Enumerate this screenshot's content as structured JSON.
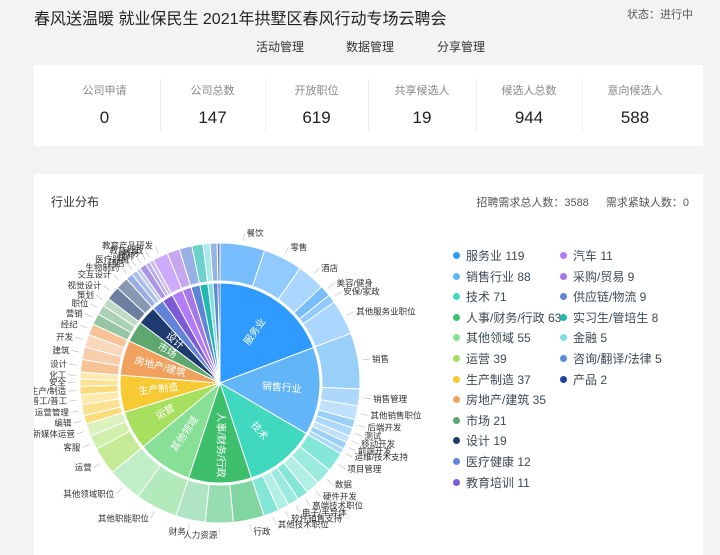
{
  "header": {
    "title": "春风送温暖 就业保民生 2021年拱墅区春风行动专场云聘会",
    "status": "状态：进行中"
  },
  "nav": [
    {
      "label": "活动管理"
    },
    {
      "label": "数据管理"
    },
    {
      "label": "分享管理"
    }
  ],
  "stats": [
    {
      "label": "公司申请",
      "value": "0"
    },
    {
      "label": "公司总数",
      "value": "147"
    },
    {
      "label": "开放职位",
      "value": "619"
    },
    {
      "label": "共享候选人",
      "value": "19"
    },
    {
      "label": "候选人总数",
      "value": "944"
    },
    {
      "label": "意向候选人",
      "value": "588"
    }
  ],
  "chart_panel": {
    "title": "行业分布",
    "total_demand": "招聘需求总人数：3588",
    "shortage": "需求紧缺人数：0"
  },
  "chart_data": {
    "type": "sunburst",
    "categories": [
      {
        "name": "服务业",
        "value": 119,
        "color": "#2f9bff",
        "children": [
          {
            "name": "餐饮",
            "value": 32
          },
          {
            "name": "零售",
            "value": 28
          },
          {
            "name": "酒店",
            "value": 20
          },
          {
            "name": "美容/健身",
            "value": 8
          },
          {
            "name": "安保/家政",
            "value": 6
          },
          {
            "name": "其他服务业职位",
            "value": 25
          }
        ]
      },
      {
        "name": "销售行业",
        "value": 88,
        "color": "#62b6f7",
        "children": [
          {
            "name": "销售",
            "value": 40
          },
          {
            "name": "销售管理",
            "value": 12
          },
          {
            "name": "其他销售职位",
            "value": 10
          },
          {
            "name": "后端开发",
            "value": 6
          },
          {
            "name": "测试",
            "value": 6
          },
          {
            "name": "移动开发",
            "value": 5
          },
          {
            "name": "前端开发",
            "value": 5
          },
          {
            "name": "运维/技术支持",
            "value": 4
          }
        ]
      },
      {
        "name": "技术",
        "value": 71,
        "color": "#41d8c0",
        "children": [
          {
            "name": "项目管理",
            "value": 14
          },
          {
            "name": "数据",
            "value": 12
          },
          {
            "name": "硬件开发",
            "value": 10
          },
          {
            "name": "高端技术职位",
            "value": 8
          },
          {
            "name": "电子/半导体",
            "value": 8
          },
          {
            "name": "软件销售支持",
            "value": 8
          },
          {
            "name": "其他技术职位",
            "value": 11
          }
        ]
      },
      {
        "name": "人事/财务/行政",
        "value": 63,
        "color": "#3dbf6c",
        "children": [
          {
            "name": "行政",
            "value": 22
          },
          {
            "name": "人力资源",
            "value": 20
          },
          {
            "name": "财务",
            "value": 21
          }
        ]
      },
      {
        "name": "其他领域",
        "value": 55,
        "color": "#88df96",
        "children": [
          {
            "name": "其他职能职位",
            "value": 30
          },
          {
            "name": "其他领域职位",
            "value": 25
          }
        ]
      },
      {
        "name": "运营",
        "value": 39,
        "color": "#a7e05e",
        "children": [
          {
            "name": "运营",
            "value": 20
          },
          {
            "name": "客服",
            "value": 10
          },
          {
            "name": "新媒体运营",
            "value": 9
          }
        ]
      },
      {
        "name": "生产制造",
        "value": 37,
        "color": "#f7c932",
        "children": [
          {
            "name": "编辑",
            "value": 6
          },
          {
            "name": "运营管理",
            "value": 8
          },
          {
            "name": "普工/普工",
            "value": 7
          },
          {
            "name": "生产/制造",
            "value": 6
          },
          {
            "name": "安全",
            "value": 5
          },
          {
            "name": "化工",
            "value": 5
          }
        ]
      },
      {
        "name": "房地产/建筑",
        "value": 35,
        "color": "#f1a15e",
        "children": [
          {
            "name": "设计",
            "value": 9
          },
          {
            "name": "建筑",
            "value": 9
          },
          {
            "name": "开发",
            "value": 9
          },
          {
            "name": "经纪",
            "value": 8
          }
        ]
      },
      {
        "name": "市场",
        "value": 21,
        "color": "#5ea86f",
        "children": [
          {
            "name": "营销",
            "value": 8
          },
          {
            "name": "职位",
            "value": 7
          },
          {
            "name": "策划",
            "value": 6
          }
        ]
      },
      {
        "name": "设计",
        "value": 19,
        "color": "#1e3a6e",
        "children": [
          {
            "name": "视觉设计",
            "value": 10
          },
          {
            "name": "交互设计",
            "value": 9
          }
        ]
      },
      {
        "name": "医疗健康",
        "value": 12,
        "color": "#6283d8",
        "children": [
          {
            "name": "生物制药",
            "value": 5
          },
          {
            "name": "药店",
            "value": 4
          },
          {
            "name": "医疗器械",
            "value": 3
          }
        ]
      },
      {
        "name": "教育培训",
        "value": 11,
        "color": "#7c5bd6",
        "children": [
          {
            "name": "教师",
            "value": 5
          },
          {
            "name": "教务",
            "value": 3
          },
          {
            "name": "教育行政",
            "value": 3
          }
        ]
      },
      {
        "name": "汽车",
        "value": 11,
        "color": "#b27cf7",
        "children": [
          {
            "name": "教育产品研发",
            "value": 11
          }
        ]
      },
      {
        "name": "采购/贸易",
        "value": 9,
        "color": "#a578e8",
        "children": [
          {
            "name": "",
            "value": 9
          }
        ]
      },
      {
        "name": "供应链/物流",
        "value": 9,
        "color": "#5f86d6",
        "children": [
          {
            "name": "",
            "value": 9
          }
        ]
      },
      {
        "name": "实习生/管培生",
        "value": 8,
        "color": "#1fb9b1",
        "children": [
          {
            "name": "",
            "value": 8
          }
        ]
      },
      {
        "name": "金融",
        "value": 5,
        "color": "#7ddfe1",
        "children": [
          {
            "name": "",
            "value": 5
          }
        ]
      },
      {
        "name": "咨询/翻译/法律",
        "value": 5,
        "color": "#5b8bd8",
        "children": [
          {
            "name": "",
            "value": 5
          }
        ]
      },
      {
        "name": "产品",
        "value": 2,
        "color": "#233f9d",
        "children": [
          {
            "name": "",
            "value": 2
          }
        ]
      }
    ]
  },
  "legend": [
    {
      "text": "服务业 119",
      "color": "#2f9bff"
    },
    {
      "text": "汽车 11",
      "color": "#b27cf7"
    },
    {
      "text": "销售行业 88",
      "color": "#62b6f7"
    },
    {
      "text": "采购/贸易 9",
      "color": "#a578e8"
    },
    {
      "text": "技术 71",
      "color": "#41d8c0"
    },
    {
      "text": "供应链/物流 9",
      "color": "#5f86d6"
    },
    {
      "text": "人事/财务/行政 63",
      "color": "#3dbf6c"
    },
    {
      "text": "实习生/管培生 8",
      "color": "#1fb9b1"
    },
    {
      "text": "其他领域 55",
      "color": "#88df96"
    },
    {
      "text": "金融 5",
      "color": "#7ddfe1"
    },
    {
      "text": "运营 39",
      "color": "#a7e05e"
    },
    {
      "text": "咨询/翻译/法律 5",
      "color": "#5b8bd8"
    },
    {
      "text": "生产制造 37",
      "color": "#f7c932"
    },
    {
      "text": "产品 2",
      "color": "#233f9d"
    },
    {
      "text": "房地产/建筑 35",
      "color": "#f1a15e"
    },
    {
      "text": "市场 21",
      "color": "#5ea86f"
    },
    {
      "text": "设计 19",
      "color": "#1e3a6e"
    },
    {
      "text": "医疗健康 12",
      "color": "#6283d8"
    },
    {
      "text": "教育培训 11",
      "color": "#7c5bd6"
    }
  ]
}
